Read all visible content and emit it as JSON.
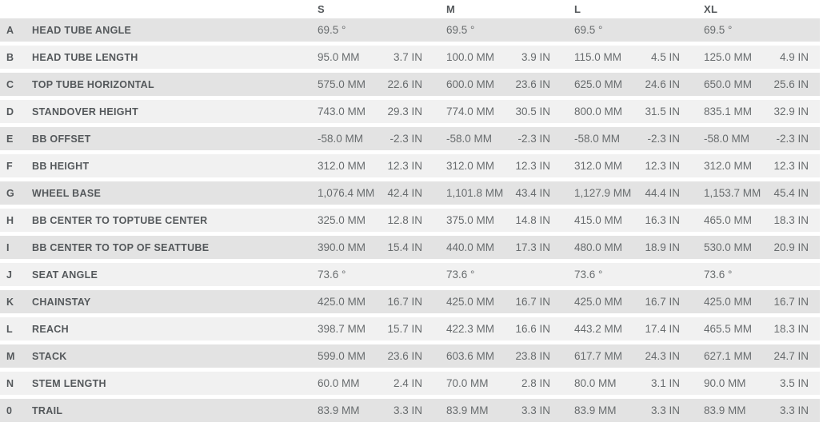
{
  "table": {
    "sizes": [
      "S",
      "M",
      "L",
      "XL"
    ],
    "units": [
      "MM",
      "IN"
    ],
    "rows": [
      {
        "letter": "A",
        "name": "HEAD TUBE ANGLE",
        "values": [
          {
            "mm": "69.5 °",
            "in": ""
          },
          {
            "mm": "69.5 °",
            "in": ""
          },
          {
            "mm": "69.5 °",
            "in": ""
          },
          {
            "mm": "69.5 °",
            "in": ""
          }
        ]
      },
      {
        "letter": "B",
        "name": "HEAD TUBE LENGTH",
        "values": [
          {
            "mm": "95.0 MM",
            "in": "3.7 IN"
          },
          {
            "mm": "100.0 MM",
            "in": "3.9 IN"
          },
          {
            "mm": "115.0 MM",
            "in": "4.5 IN"
          },
          {
            "mm": "125.0 MM",
            "in": "4.9 IN"
          }
        ]
      },
      {
        "letter": "C",
        "name": "TOP TUBE HORIZONTAL",
        "values": [
          {
            "mm": "575.0 MM",
            "in": "22.6 IN"
          },
          {
            "mm": "600.0 MM",
            "in": "23.6 IN"
          },
          {
            "mm": "625.0 MM",
            "in": "24.6 IN"
          },
          {
            "mm": "650.0 MM",
            "in": "25.6 IN"
          }
        ]
      },
      {
        "letter": "D",
        "name": "STANDOVER HEIGHT",
        "values": [
          {
            "mm": "743.0 MM",
            "in": "29.3 IN"
          },
          {
            "mm": "774.0 MM",
            "in": "30.5 IN"
          },
          {
            "mm": "800.0 MM",
            "in": "31.5 IN"
          },
          {
            "mm": "835.1 MM",
            "in": "32.9 IN"
          }
        ]
      },
      {
        "letter": "E",
        "name": "BB OFFSET",
        "values": [
          {
            "mm": "-58.0 MM",
            "in": "-2.3 IN"
          },
          {
            "mm": "-58.0 MM",
            "in": "-2.3 IN"
          },
          {
            "mm": "-58.0 MM",
            "in": "-2.3 IN"
          },
          {
            "mm": "-58.0 MM",
            "in": "-2.3 IN"
          }
        ]
      },
      {
        "letter": "F",
        "name": "BB HEIGHT",
        "values": [
          {
            "mm": "312.0 MM",
            "in": "12.3 IN"
          },
          {
            "mm": "312.0 MM",
            "in": "12.3 IN"
          },
          {
            "mm": "312.0 MM",
            "in": "12.3 IN"
          },
          {
            "mm": "312.0 MM",
            "in": "12.3 IN"
          }
        ]
      },
      {
        "letter": "G",
        "name": "WHEEL BASE",
        "values": [
          {
            "mm": "1,076.4 MM",
            "in": "42.4 IN"
          },
          {
            "mm": "1,101.8 MM",
            "in": "43.4 IN"
          },
          {
            "mm": "1,127.9 MM",
            "in": "44.4 IN"
          },
          {
            "mm": "1,153.7 MM",
            "in": "45.4 IN"
          }
        ]
      },
      {
        "letter": "H",
        "name": "BB CENTER TO TOPTUBE CENTER",
        "values": [
          {
            "mm": "325.0 MM",
            "in": "12.8 IN"
          },
          {
            "mm": "375.0 MM",
            "in": "14.8 IN"
          },
          {
            "mm": "415.0 MM",
            "in": "16.3 IN"
          },
          {
            "mm": "465.0 MM",
            "in": "18.3 IN"
          }
        ]
      },
      {
        "letter": "I",
        "name": "BB CENTER TO TOP OF SEATTUBE",
        "values": [
          {
            "mm": "390.0 MM",
            "in": "15.4 IN"
          },
          {
            "mm": "440.0 MM",
            "in": "17.3 IN"
          },
          {
            "mm": "480.0 MM",
            "in": "18.9 IN"
          },
          {
            "mm": "530.0 MM",
            "in": "20.9 IN"
          }
        ]
      },
      {
        "letter": "J",
        "name": "SEAT ANGLE",
        "values": [
          {
            "mm": "73.6 °",
            "in": ""
          },
          {
            "mm": "73.6 °",
            "in": ""
          },
          {
            "mm": "73.6 °",
            "in": ""
          },
          {
            "mm": "73.6 °",
            "in": ""
          }
        ]
      },
      {
        "letter": "K",
        "name": "CHAINSTAY",
        "values": [
          {
            "mm": "425.0 MM",
            "in": "16.7 IN"
          },
          {
            "mm": "425.0 MM",
            "in": "16.7 IN"
          },
          {
            "mm": "425.0 MM",
            "in": "16.7 IN"
          },
          {
            "mm": "425.0 MM",
            "in": "16.7 IN"
          }
        ]
      },
      {
        "letter": "L",
        "name": "REACH",
        "values": [
          {
            "mm": "398.7 MM",
            "in": "15.7 IN"
          },
          {
            "mm": "422.3 MM",
            "in": "16.6 IN"
          },
          {
            "mm": "443.2 MM",
            "in": "17.4 IN"
          },
          {
            "mm": "465.5 MM",
            "in": "18.3 IN"
          }
        ]
      },
      {
        "letter": "M",
        "name": "STACK",
        "values": [
          {
            "mm": "599.0 MM",
            "in": "23.6 IN"
          },
          {
            "mm": "603.6 MM",
            "in": "23.8 IN"
          },
          {
            "mm": "617.7 MM",
            "in": "24.3 IN"
          },
          {
            "mm": "627.1 MM",
            "in": "24.7 IN"
          }
        ]
      },
      {
        "letter": "N",
        "name": "STEM LENGTH",
        "values": [
          {
            "mm": "60.0 MM",
            "in": "2.4 IN"
          },
          {
            "mm": "70.0 MM",
            "in": "2.8 IN"
          },
          {
            "mm": "80.0 MM",
            "in": "3.1 IN"
          },
          {
            "mm": "90.0 MM",
            "in": "3.5 IN"
          }
        ]
      },
      {
        "letter": "0",
        "name": "TRAIL",
        "values": [
          {
            "mm": "83.9 MM",
            "in": "3.3 IN"
          },
          {
            "mm": "83.9 MM",
            "in": "3.3 IN"
          },
          {
            "mm": "83.9 MM",
            "in": "3.3 IN"
          },
          {
            "mm": "83.9 MM",
            "in": "3.3 IN"
          }
        ]
      }
    ]
  },
  "colors": {
    "row_odd": "#e3e3e3",
    "row_even": "#f1f1f1",
    "background": "#ffffff",
    "label_text": "#54585b",
    "value_text": "#686c6e"
  }
}
